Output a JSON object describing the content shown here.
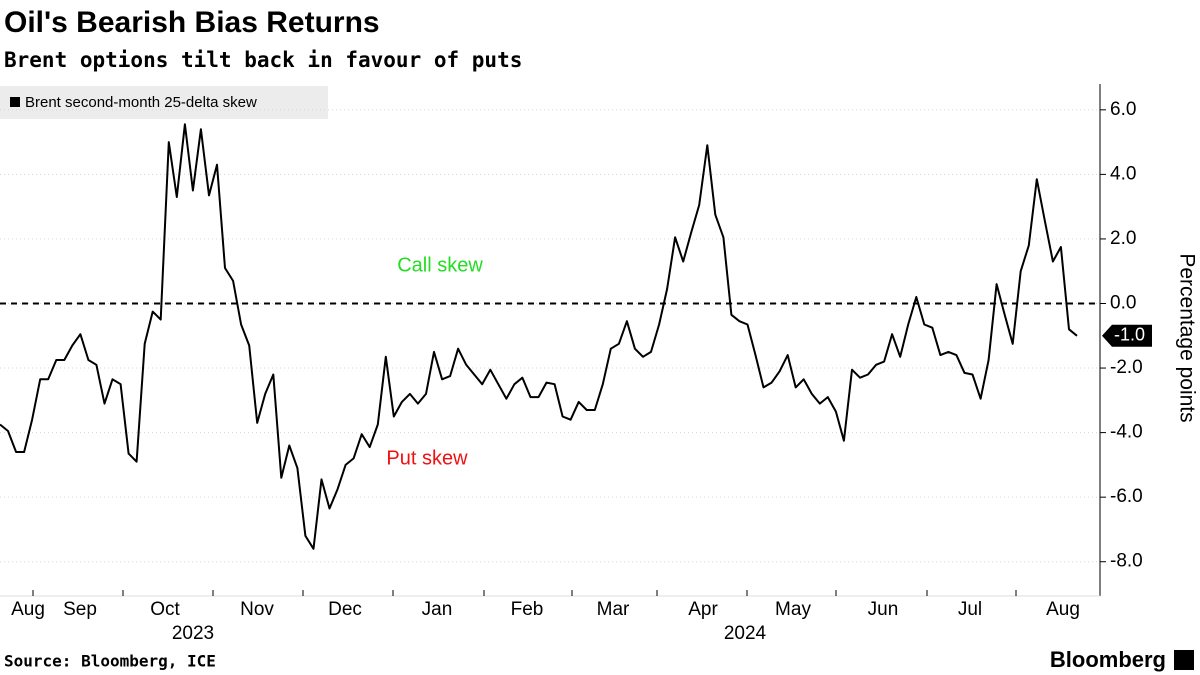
{
  "chart_data": {
    "type": "line",
    "title": "Oil's Bearish Bias Returns",
    "subtitle": "Brent options tilt back in favour of puts",
    "y_axis_label": "Percentage points",
    "source": "Source: Bloomberg, ICE",
    "brand": "Bloomberg",
    "annotations": [
      {
        "text": "Call skew",
        "color": "#22dd22"
      },
      {
        "text": "Put skew",
        "color": "#ee1111"
      }
    ],
    "x_labels": [
      "Aug",
      "Sep",
      "Oct",
      "Nov",
      "Dec",
      "Jan",
      "Feb",
      "Mar",
      "Apr",
      "May",
      "Jun",
      "Jul",
      "Aug"
    ],
    "year_labels": [
      "2023",
      "2024"
    ],
    "ylim": [
      -9,
      6.8
    ],
    "yticks": [
      {
        "value": -8,
        "label": "-8.0"
      },
      {
        "value": -6,
        "label": "-6.0"
      },
      {
        "value": -4,
        "label": "-4.0"
      },
      {
        "value": -2,
        "label": "-2.0"
      },
      {
        "value": 0,
        "label": "0.0"
      },
      {
        "value": 2,
        "label": "2.0"
      },
      {
        "value": 4,
        "label": "4.0"
      },
      {
        "value": 6,
        "label": "6.0"
      }
    ],
    "grid": true,
    "zero_line": true,
    "series": [
      {
        "name": "Brent second-month 25-delta skew",
        "color": "#000000",
        "values": [
          -3.75,
          -3.95,
          -4.6,
          -4.6,
          -3.6,
          -2.35,
          -2.35,
          -1.75,
          -1.75,
          -1.3,
          -0.95,
          -1.75,
          -1.9,
          -3.1,
          -2.35,
          -2.5,
          -4.65,
          -4.9,
          -1.25,
          -0.25,
          -0.5,
          5.0,
          3.3,
          5.55,
          3.5,
          5.4,
          3.35,
          4.3,
          1.1,
          0.7,
          -0.65,
          -1.3,
          -3.7,
          -2.8,
          -2.2,
          -5.4,
          -4.4,
          -5.1,
          -7.2,
          -7.6,
          -5.45,
          -6.35,
          -5.75,
          -5.0,
          -4.8,
          -4.05,
          -4.45,
          -3.75,
          -1.65,
          -3.5,
          -3.05,
          -2.8,
          -3.1,
          -2.8,
          -1.5,
          -2.35,
          -2.25,
          -1.4,
          -1.9,
          -2.2,
          -2.5,
          -2.05,
          -2.5,
          -2.95,
          -2.5,
          -2.3,
          -2.9,
          -2.9,
          -2.45,
          -2.5,
          -3.5,
          -3.6,
          -3.05,
          -3.3,
          -3.3,
          -2.5,
          -1.4,
          -1.25,
          -0.55,
          -1.4,
          -1.65,
          -1.5,
          -0.65,
          0.45,
          2.05,
          1.3,
          2.2,
          3.05,
          4.9,
          2.75,
          2.05,
          -0.35,
          -0.55,
          -0.65,
          -1.6,
          -2.6,
          -2.45,
          -2.1,
          -1.6,
          -2.6,
          -2.35,
          -2.8,
          -3.1,
          -2.9,
          -3.35,
          -4.25,
          -2.05,
          -2.3,
          -2.2,
          -1.9,
          -1.8,
          -0.95,
          -1.65,
          -0.65,
          0.2,
          -0.65,
          -0.75,
          -1.6,
          -1.5,
          -1.6,
          -2.15,
          -2.2,
          -2.95,
          -1.75,
          0.6,
          -0.35,
          -1.25,
          1.0,
          1.8,
          3.85,
          2.55,
          1.3,
          1.75,
          -0.8,
          -1.0
        ],
        "value_labels": [
          null,
          null,
          null,
          null,
          null,
          null,
          null,
          null,
          null,
          null,
          null,
          null,
          null,
          null,
          null,
          null,
          null,
          null,
          null,
          null,
          null,
          null,
          null,
          null,
          null,
          null,
          null,
          null,
          null,
          null,
          null,
          null,
          null,
          null,
          null,
          null,
          null,
          null,
          null,
          null,
          null,
          null,
          null,
          null,
          null,
          null,
          null,
          null,
          null,
          null,
          null,
          null,
          null,
          null,
          null,
          null,
          null,
          null,
          null,
          null,
          null,
          null,
          null,
          null,
          null,
          null,
          null,
          null,
          null,
          null,
          null,
          null,
          null,
          null,
          null,
          null,
          null,
          null,
          null,
          null,
          null,
          null,
          null,
          null,
          null,
          null,
          null,
          null,
          null,
          null,
          null,
          null,
          null,
          null,
          null,
          null,
          null,
          null,
          null,
          null,
          null,
          null,
          null,
          null,
          null,
          null,
          null,
          null,
          null,
          null,
          null,
          null,
          null,
          null,
          null,
          null,
          null,
          null,
          null,
          null,
          null,
          null,
          null,
          null,
          null,
          null,
          null,
          null,
          null,
          null,
          null,
          null,
          null,
          null,
          "-1.0"
        ]
      }
    ]
  }
}
